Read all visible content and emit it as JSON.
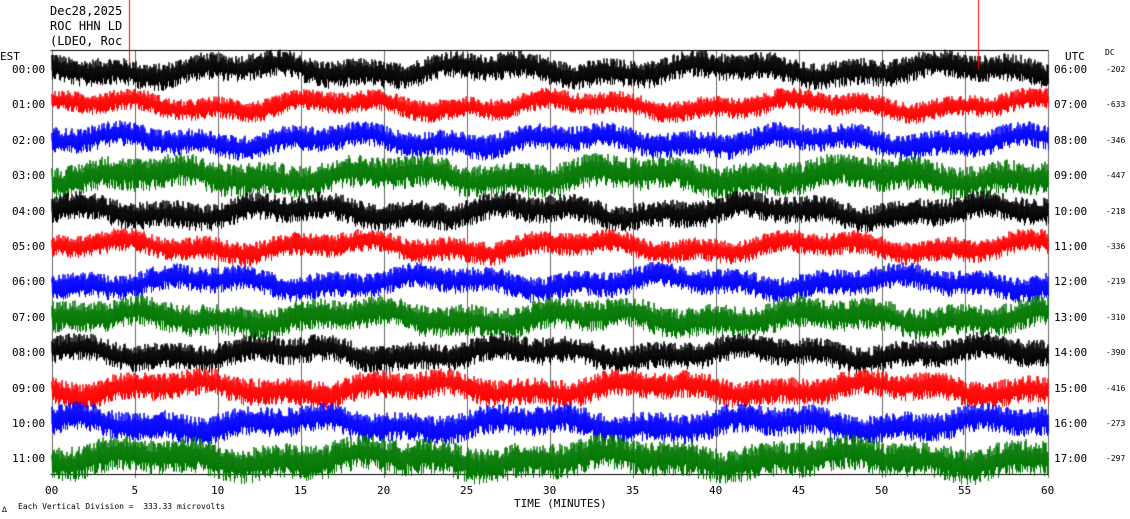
{
  "header": {
    "date": "Dec28,2025",
    "station": "ROC HHN LD",
    "network": "(LDEO, Roc"
  },
  "left_timezone": "EST",
  "right_timezone": "UTC",
  "dc_header": "DC",
  "footer": {
    "scale_text": "Each Vertical Division =  333.33 microvolts",
    "logo_text": "∆"
  },
  "chart_data": {
    "type": "line",
    "subtype": "helicorder",
    "xlabel": "TIME (MINUTES)",
    "xlim": [
      0,
      60
    ],
    "x_ticks": [
      0,
      5,
      10,
      15,
      20,
      25,
      30,
      35,
      40,
      45,
      50,
      55,
      60
    ],
    "x_tick_labels": [
      "00",
      "5",
      "10",
      "15",
      "20",
      "25",
      "30",
      "35",
      "40",
      "45",
      "50",
      "55",
      "60"
    ],
    "grid": "vertical lines every 5 minutes",
    "trace_colors": [
      "#000000",
      "#ff0000",
      "#0000ff",
      "#007700"
    ],
    "rows": [
      {
        "left": "00:00",
        "right": "06:00",
        "dc": "-202"
      },
      {
        "left": "01:00",
        "right": "07:00",
        "dc": "-633"
      },
      {
        "left": "02:00",
        "right": "08:00",
        "dc": "-346"
      },
      {
        "left": "03:00",
        "right": "09:00",
        "dc": "-447"
      },
      {
        "left": "04:00",
        "right": "10:00",
        "dc": "-218"
      },
      {
        "left": "05:00",
        "right": "11:00",
        "dc": "-336"
      },
      {
        "left": "06:00",
        "right": "12:00",
        "dc": "-219"
      },
      {
        "left": "07:00",
        "right": "13:00",
        "dc": "-310"
      },
      {
        "left": "08:00",
        "right": "14:00",
        "dc": "-390"
      },
      {
        "left": "09:00",
        "right": "15:00",
        "dc": "-416"
      },
      {
        "left": "10:00",
        "right": "16:00",
        "dc": "-273"
      },
      {
        "left": "11:00",
        "right": "17:00",
        "dc": "-297"
      }
    ]
  }
}
